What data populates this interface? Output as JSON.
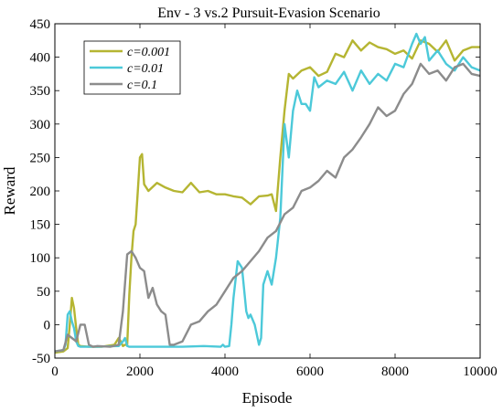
{
  "chart_data": {
    "type": "line",
    "title": "Env - 3 vs.2 Pursuit-Evasion Scenario",
    "xlabel": "Episode",
    "ylabel": "Reward",
    "xlim": [
      0,
      10000
    ],
    "ylim": [
      -50,
      450
    ],
    "xticks": [
      "0",
      "2000",
      "4000",
      "6000",
      "8000",
      "10000"
    ],
    "yticks": [
      "-50",
      "0",
      "50",
      "100",
      "150",
      "200",
      "250",
      "300",
      "350",
      "400",
      "450"
    ],
    "grid": false,
    "legend_position": "top-left",
    "series": [
      {
        "name": "c=0.001",
        "color": "#b5b532",
        "x": [
          0,
          200,
          300,
          350,
          400,
          450,
          500,
          550,
          600,
          800,
          1100,
          1400,
          1500,
          1550,
          1600,
          1650,
          1700,
          1750,
          1800,
          1850,
          1900,
          1950,
          2000,
          2050,
          2100,
          2200,
          2400,
          2600,
          2800,
          3000,
          3200,
          3400,
          3600,
          3800,
          4000,
          4200,
          4400,
          4600,
          4800,
          5000,
          5100,
          5200,
          5300,
          5400,
          5500,
          5600,
          5800,
          6000,
          6200,
          6400,
          6600,
          6800,
          7000,
          7200,
          7400,
          7600,
          7800,
          8000,
          8200,
          8400,
          8600,
          8800,
          9000,
          9200,
          9400,
          9600,
          9800,
          10000
        ],
        "values": [
          -42,
          -40,
          -35,
          0,
          40,
          25,
          -5,
          -30,
          -32,
          -33,
          -33,
          -30,
          -20,
          -25,
          -32,
          -30,
          -30,
          45,
          100,
          140,
          150,
          200,
          250,
          255,
          210,
          200,
          212,
          205,
          200,
          198,
          212,
          198,
          200,
          195,
          195,
          192,
          190,
          180,
          192,
          193,
          195,
          170,
          250,
          320,
          375,
          368,
          380,
          385,
          372,
          378,
          405,
          400,
          425,
          410,
          422,
          415,
          412,
          405,
          410,
          398,
          425,
          420,
          408,
          425,
          395,
          410,
          415,
          415
        ]
      },
      {
        "name": "c=0.01",
        "color": "#4cc9d9",
        "x": [
          0,
          200,
          250,
          300,
          350,
          400,
          450,
          500,
          550,
          600,
          1000,
          1500,
          1600,
          1650,
          1700,
          1750,
          2000,
          2500,
          3000,
          3500,
          3900,
          3950,
          4000,
          4100,
          4150,
          4200,
          4300,
          4400,
          4500,
          4550,
          4600,
          4700,
          4800,
          4850,
          4900,
          5000,
          5100,
          5200,
          5300,
          5400,
          5500,
          5600,
          5700,
          5800,
          5900,
          6000,
          6100,
          6200,
          6400,
          6600,
          6800,
          7000,
          7200,
          7400,
          7600,
          7800,
          8000,
          8200,
          8400,
          8500,
          8600,
          8700,
          8800,
          9000,
          9200,
          9400,
          9600,
          9800,
          10000
        ],
        "values": [
          -40,
          -38,
          -30,
          15,
          20,
          5,
          -5,
          -25,
          -32,
          -33,
          -33,
          -32,
          -25,
          -20,
          -32,
          -33,
          -33,
          -33,
          -33,
          -32,
          -33,
          -30,
          -33,
          -32,
          0,
          40,
          95,
          85,
          20,
          10,
          15,
          0,
          -30,
          -20,
          60,
          80,
          60,
          100,
          160,
          300,
          250,
          320,
          350,
          330,
          330,
          320,
          370,
          355,
          365,
          360,
          378,
          350,
          380,
          360,
          375,
          365,
          390,
          385,
          420,
          435,
          420,
          430,
          395,
          410,
          390,
          380,
          400,
          385,
          380
        ]
      },
      {
        "name": "c=0.1",
        "color": "#8c8c8c",
        "x": [
          0,
          200,
          300,
          400,
          500,
          600,
          700,
          800,
          900,
          1000,
          1300,
          1500,
          1600,
          1700,
          1800,
          1900,
          2000,
          2100,
          2200,
          2300,
          2400,
          2500,
          2600,
          2700,
          2800,
          3000,
          3200,
          3400,
          3600,
          3800,
          4000,
          4200,
          4400,
          4600,
          4800,
          5000,
          5200,
          5400,
          5600,
          5800,
          6000,
          6200,
          6400,
          6600,
          6800,
          7000,
          7200,
          7400,
          7600,
          7800,
          8000,
          8200,
          8400,
          8600,
          8800,
          9000,
          9200,
          9400,
          9600,
          9800,
          10000
        ],
        "values": [
          -40,
          -38,
          -15,
          -20,
          -25,
          0,
          0,
          -30,
          -33,
          -32,
          -33,
          -30,
          20,
          105,
          110,
          100,
          85,
          80,
          40,
          55,
          30,
          20,
          15,
          -30,
          -30,
          -25,
          0,
          5,
          20,
          30,
          50,
          70,
          80,
          95,
          110,
          130,
          140,
          165,
          175,
          200,
          205,
          215,
          230,
          220,
          250,
          262,
          280,
          300,
          325,
          312,
          320,
          345,
          360,
          390,
          375,
          380,
          365,
          385,
          390,
          375,
          372
        ]
      }
    ]
  }
}
